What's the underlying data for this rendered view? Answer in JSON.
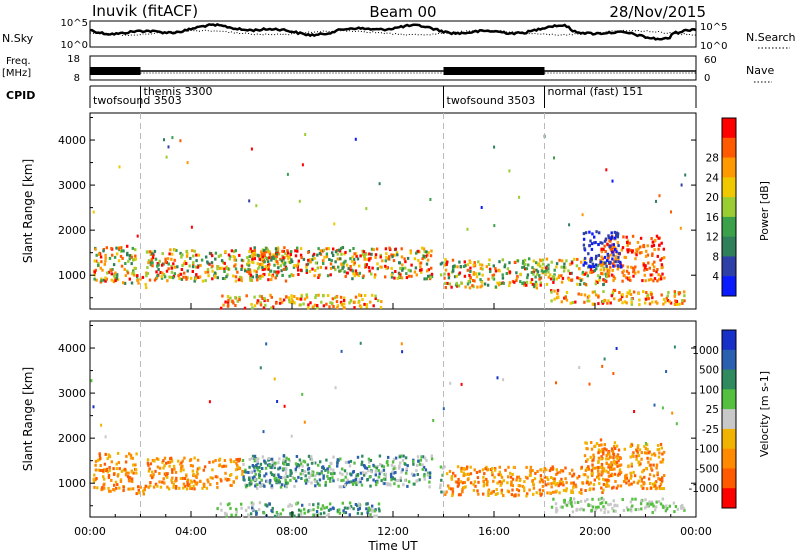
{
  "header": {
    "station": "Inuvik (fitACF)",
    "beam": "Beam 00",
    "date": "28/Nov/2015"
  },
  "chart_data": [
    {
      "type": "line",
      "name": "noise-panel",
      "left_label": "N.Sky",
      "right_label": "N.Search",
      "left_ticks": [
        "10^5",
        "10^0"
      ],
      "right_ticks": [
        "10^5",
        "10^0"
      ]
    },
    {
      "type": "line",
      "name": "freq-panel",
      "left_label_top": "Freq.",
      "left_label_bottom": "[MHz]",
      "left_ticks": [
        "18",
        "8"
      ],
      "right_label": "Nave",
      "right_ticks": [
        "60",
        "0"
      ]
    },
    {
      "type": "table",
      "name": "cpid-bar",
      "label": "CPID",
      "segments": [
        {
          "label": "twofsound 3503",
          "start_hour": 0,
          "end_hour": 2
        },
        {
          "label": "themis 3300",
          "start_hour": 2,
          "end_hour": 14
        },
        {
          "label": "twofsound 3503",
          "start_hour": 14,
          "end_hour": 18
        },
        {
          "label": "normal (fast) 151",
          "start_hour": 18,
          "end_hour": 24
        }
      ]
    },
    {
      "type": "heatmap",
      "name": "power-panel",
      "ylabel": "Slant Range [km]",
      "yticks": [
        "1000",
        "2000",
        "3000",
        "4000"
      ],
      "ylim": [
        250,
        4600
      ],
      "colorbar_label": "Power [dB]",
      "colorbar_ticks": [
        "4",
        "8",
        "12",
        "16",
        "20",
        "24",
        "28"
      ]
    },
    {
      "type": "heatmap",
      "name": "velocity-panel",
      "ylabel": "Slant Range [km]",
      "yticks": [
        "1000",
        "2000",
        "3000",
        "4000"
      ],
      "ylim": [
        250,
        4600
      ],
      "colorbar_label": "Velocity [m s-1]",
      "colorbar_ticks": [
        "1000",
        "500",
        "100",
        "25",
        "-25",
        "-100",
        "-500",
        "-1000"
      ]
    }
  ],
  "time_axis": {
    "xlabel": "Time UT",
    "ticks": [
      "00:00",
      "04:00",
      "08:00",
      "12:00",
      "16:00",
      "20:00",
      "00:00"
    ],
    "xlim_hours": [
      0,
      24
    ]
  }
}
